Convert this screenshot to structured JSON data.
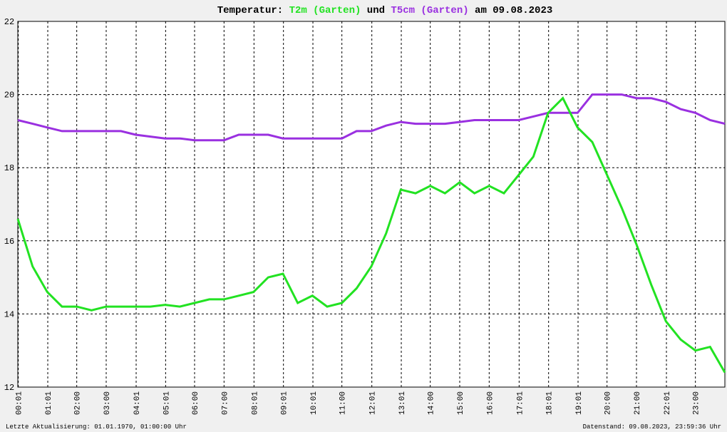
{
  "chart_data": {
    "type": "line",
    "title_prefix": "Temperatur:",
    "title_join": "und",
    "title_suffix": "am 09.08.2023",
    "footer_left": "Letzte Aktualisierung: 01.01.1970, 01:00:00 Uhr",
    "footer_right": "Datenstand: 09.08.2023, 23:59:36 Uhr",
    "x": [
      "00:00",
      "00:30",
      "01:00",
      "01:30",
      "02:00",
      "02:30",
      "03:00",
      "03:30",
      "04:00",
      "04:30",
      "05:00",
      "05:30",
      "06:00",
      "06:30",
      "07:00",
      "07:30",
      "08:00",
      "08:30",
      "09:00",
      "09:30",
      "10:00",
      "10:30",
      "11:00",
      "11:30",
      "12:00",
      "12:30",
      "13:00",
      "13:30",
      "14:00",
      "14:30",
      "15:00",
      "15:30",
      "16:00",
      "16:30",
      "17:00",
      "17:30",
      "18:00",
      "18:30",
      "19:00",
      "19:30",
      "20:00",
      "20:30",
      "21:00",
      "21:30",
      "22:00",
      "22:30",
      "23:00",
      "23:30",
      "24:00"
    ],
    "series": [
      {
        "name": "T2m (Garten)",
        "color": "#22e222",
        "values": [
          16.6,
          15.3,
          14.6,
          14.2,
          14.2,
          14.1,
          14.2,
          14.2,
          14.2,
          14.2,
          14.25,
          14.2,
          14.3,
          14.4,
          14.4,
          14.5,
          14.6,
          15.0,
          15.1,
          14.3,
          14.5,
          14.2,
          14.3,
          14.7,
          15.3,
          16.2,
          17.4,
          17.3,
          17.5,
          17.3,
          17.6,
          17.3,
          17.5,
          17.3,
          17.8,
          18.3,
          19.5,
          19.9,
          19.1,
          18.7,
          17.8,
          16.9,
          15.9,
          14.8,
          13.8,
          13.3,
          13.0,
          13.1,
          12.4
        ]
      },
      {
        "name": "T5cm (Garten)",
        "color": "#9a30e0",
        "values": [
          19.3,
          19.2,
          19.1,
          19.0,
          19.0,
          19.0,
          19.0,
          19.0,
          18.9,
          18.85,
          18.8,
          18.8,
          18.75,
          18.75,
          18.75,
          18.9,
          18.9,
          18.9,
          18.8,
          18.8,
          18.8,
          18.8,
          18.8,
          19.0,
          19.0,
          19.15,
          19.25,
          19.2,
          19.2,
          19.2,
          19.25,
          19.3,
          19.3,
          19.3,
          19.3,
          19.4,
          19.5,
          19.5,
          19.5,
          20.0,
          20.0,
          20.0,
          19.9,
          19.9,
          19.8,
          19.6,
          19.5,
          19.3,
          19.2
        ]
      }
    ],
    "xlim": [
      "00:00",
      "24:00"
    ],
    "xticks": [
      "00:01",
      "01:01",
      "02:00",
      "03:00",
      "04:01",
      "05:01",
      "06:00",
      "07:00",
      "08:01",
      "09:01",
      "10:01",
      "11:00",
      "12:01",
      "13:01",
      "14:00",
      "15:00",
      "16:00",
      "17:01",
      "18:01",
      "19:01",
      "20:00",
      "21:00",
      "22:01",
      "23:00"
    ],
    "ylim": [
      12,
      22
    ],
    "yticks": [
      12,
      14,
      16,
      18,
      20,
      22
    ],
    "grid": true
  }
}
